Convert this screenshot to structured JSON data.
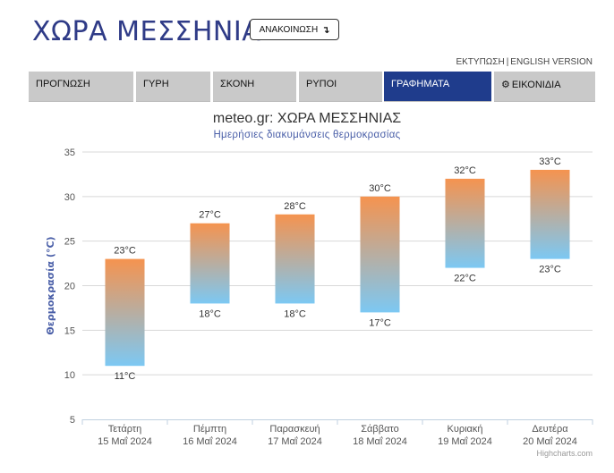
{
  "header": {
    "title": "ΧΩΡΑ ΜΕΣΣΗΝΙΑΣ",
    "announce_label": "ΑΝΑΚΟΙΝΩΣΗ",
    "announce_arrow": "↴"
  },
  "links": {
    "print": "ΕΚΤΥΠΩΣΗ",
    "separator": "|",
    "english": "ENGLISH VERSION"
  },
  "tabs": [
    {
      "label": "ΠΡΟΓΝΩΣΗ",
      "active": false
    },
    {
      "label": "ΓΥΡΗ",
      "active": false
    },
    {
      "label": "ΣΚΟΝΗ",
      "active": false
    },
    {
      "label": "ΡΥΠΟΙ",
      "active": false
    },
    {
      "label": "ΓΡΑΦΗΜΑΤΑ",
      "active": true
    },
    {
      "label": "ΕΙΚΟΝΙΔΙΑ",
      "active": false,
      "icon": "gear-icon"
    }
  ],
  "chart_data": {
    "type": "columnrange",
    "title": "meteo.gr: ΧΩΡΑ ΜΕΣΣΗΝΙΑΣ",
    "subtitle": "Ημερήσιες διακυμάνσεις θερμοκρασίας",
    "ylabel": "Θερμοκρασία (°C)",
    "ylim": [
      5,
      35
    ],
    "yticks": [
      5,
      10,
      15,
      20,
      25,
      30,
      35
    ],
    "grid": true,
    "unit": "°C",
    "categories": [
      {
        "day": "Τετάρτη",
        "date": "15 Μαΐ 2024"
      },
      {
        "day": "Πέμπτη",
        "date": "16 Μαΐ 2024"
      },
      {
        "day": "Παρασκευή",
        "date": "17 Μαΐ 2024"
      },
      {
        "day": "Σάββατο",
        "date": "18 Μαΐ 2024"
      },
      {
        "day": "Κυριακή",
        "date": "19 Μαΐ 2024"
      },
      {
        "day": "Δευτέρα",
        "date": "20 Μαΐ 2024"
      }
    ],
    "low": [
      11,
      18,
      18,
      17,
      22,
      23
    ],
    "high": [
      23,
      27,
      28,
      30,
      32,
      33
    ],
    "colors": {
      "top": "#f5934f",
      "bottom": "#7cc8f3",
      "grid": "#d8d8d8",
      "axis": "#c0d0e0"
    }
  },
  "credits": "Highcharts.com"
}
